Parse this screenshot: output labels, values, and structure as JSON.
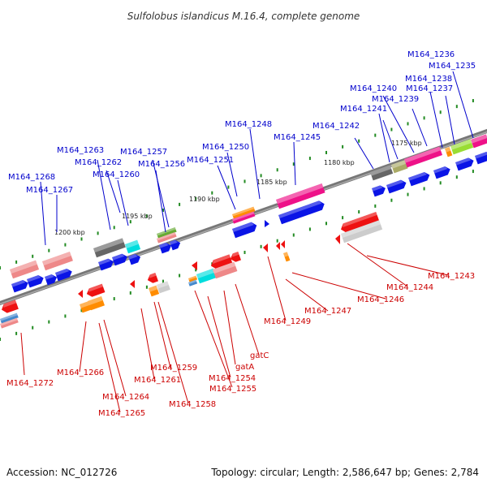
{
  "title": "Sulfolobus islandicus M.16.4, complete genome",
  "footer": {
    "accession": "Accession: NC_012726",
    "summary": "Topology: circular; Length: 2,586,647 bp; Genes: 2,784"
  },
  "colors": {
    "backbone": "#777777",
    "tick": "#228b22",
    "top_label": "#0000cc",
    "bottom_label": "#cc0000",
    "blue": "#0a14e6",
    "red": "#ee1111",
    "orange": "#ff8c00",
    "pink": "#ee8888",
    "magenta": "#ee1188",
    "gray": "#666666",
    "olive": "#aaaa66",
    "cyan": "#00dddd",
    "lightgray": "#cccccc",
    "lime": "#99dd33",
    "green": "#66aa33",
    "steel": "#4488cc"
  },
  "ticks": [
    {
      "label": "1175 kbp"
    },
    {
      "label": "1180 kbp"
    },
    {
      "label": "1185 kbp"
    },
    {
      "label": "1190 kbp"
    },
    {
      "label": "1195 kbp"
    },
    {
      "label": "1200 kbp"
    }
  ],
  "top_genes": [
    {
      "label": "M164_1236"
    },
    {
      "label": "M164_1235"
    },
    {
      "label": "M164_1238"
    },
    {
      "label": "M164_1240"
    },
    {
      "label": "M164_1237"
    },
    {
      "label": "M164_1239"
    },
    {
      "label": "M164_1241"
    },
    {
      "label": "M164_1242"
    },
    {
      "label": "M164_1248"
    },
    {
      "label": "M164_1245"
    },
    {
      "label": "M164_1263"
    },
    {
      "label": "M164_1257"
    },
    {
      "label": "M164_1250"
    },
    {
      "label": "M164_1262"
    },
    {
      "label": "M164_1256"
    },
    {
      "label": "M164_1251"
    },
    {
      "label": "M164_1260"
    },
    {
      "label": "M164_1268"
    },
    {
      "label": "M164_1267"
    }
  ],
  "bottom_genes": [
    {
      "label": "M164_1243"
    },
    {
      "label": "M164_1244"
    },
    {
      "label": "M164_1246"
    },
    {
      "label": "M164_1247"
    },
    {
      "label": "M164_1249"
    },
    {
      "label": "gatC"
    },
    {
      "label": "gatA"
    },
    {
      "label": "M164_1254"
    },
    {
      "label": "M164_1255"
    },
    {
      "label": "M164_1259"
    },
    {
      "label": "M164_1261"
    },
    {
      "label": "M164_1258"
    },
    {
      "label": "M164_1266"
    },
    {
      "label": "M164_1264"
    },
    {
      "label": "M164_1265"
    },
    {
      "label": "M164_1272"
    }
  ]
}
